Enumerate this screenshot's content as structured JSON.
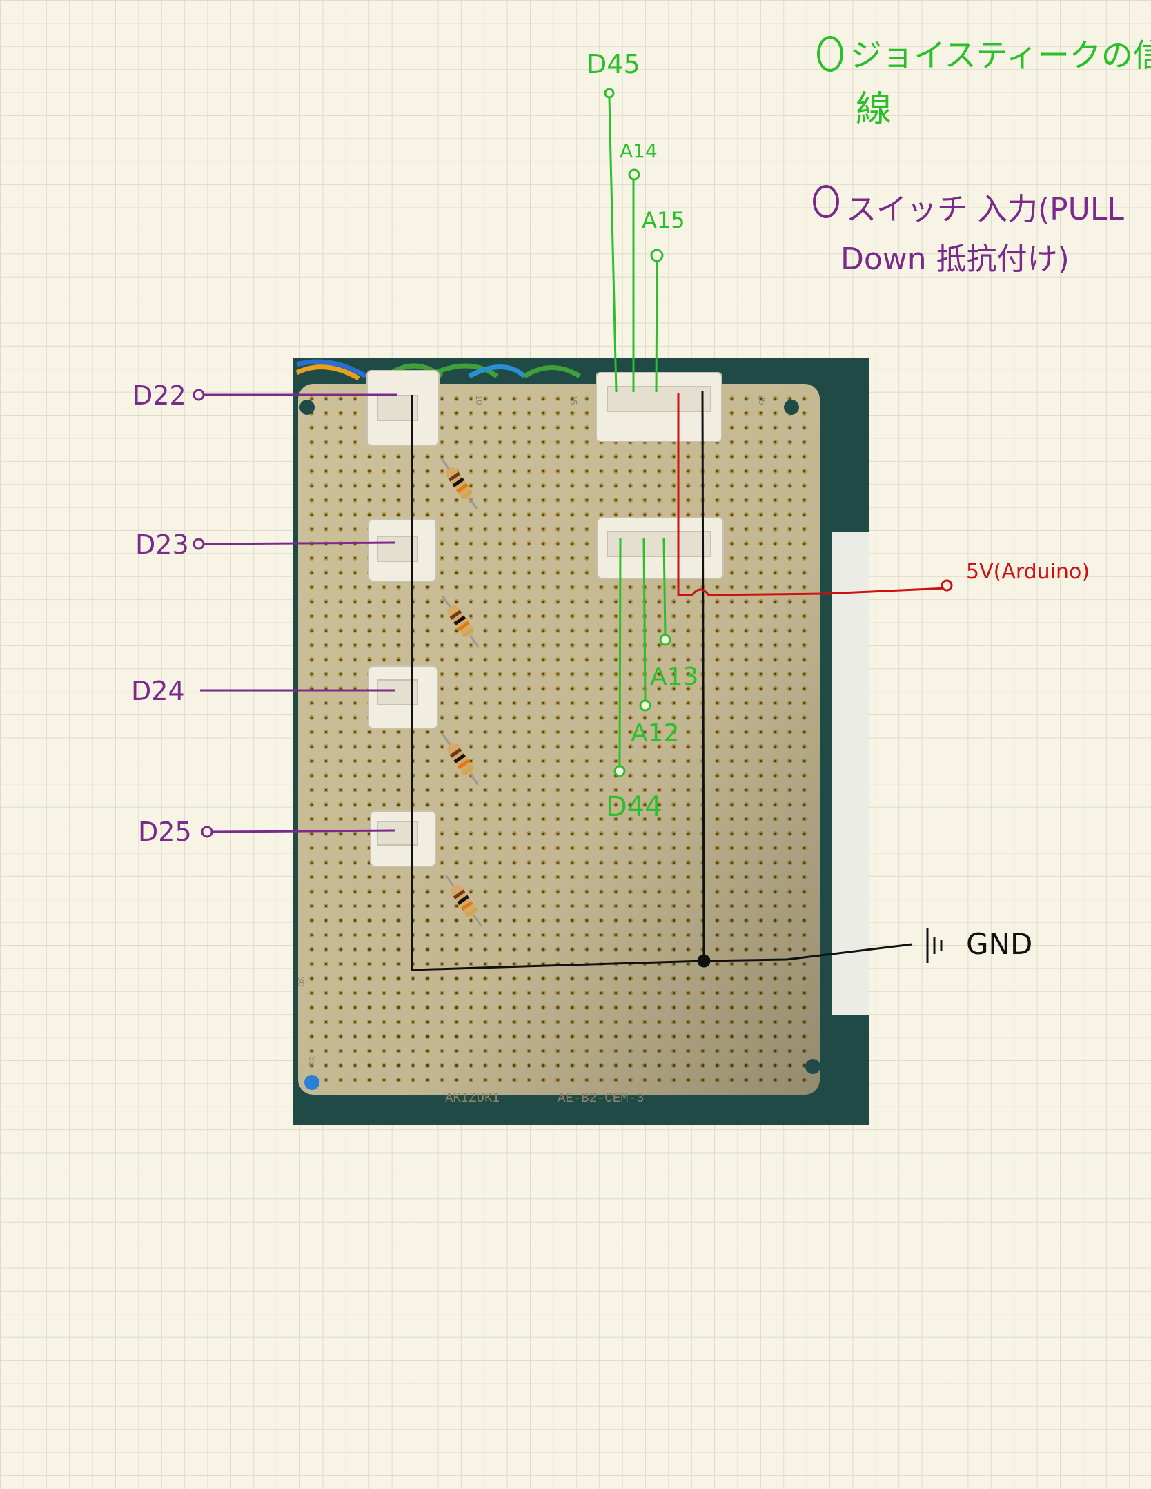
{
  "legend": {
    "joystick_line1": "ジョイスティークの信号",
    "joystick_line2": "線",
    "joystick_color": "#2bbf2b",
    "switch_line1": "スイッチ 入力(PULL",
    "switch_line2": "Down 抵抗付け)",
    "switch_color": "#7a2a8a"
  },
  "labels": {
    "d22": "D22",
    "d23": "D23",
    "d24": "D24",
    "d25": "D25",
    "d45": "D45",
    "a14": "A14",
    "a15": "A15",
    "a13": "A13",
    "a12": "A12",
    "d44": "D44",
    "power": "5V(Arduino)",
    "gnd": "GND"
  },
  "board": {
    "silkscreen_maker": "AKIZUKI",
    "silkscreen_model": "AE-B2-CEM-3",
    "col_marks": [
      "10",
      "15",
      "25"
    ],
    "row_marks": [
      "30",
      "35"
    ]
  },
  "colors": {
    "power": "#cc1111",
    "gnd": "#111111",
    "joystick": "#2bbf2b",
    "switch": "#7a2a8a"
  }
}
